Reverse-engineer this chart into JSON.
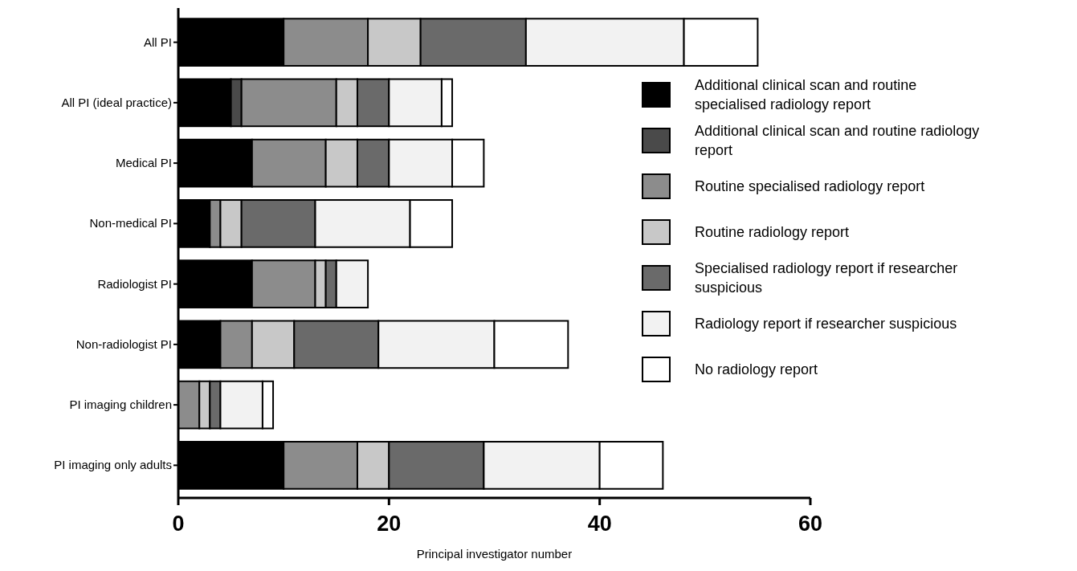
{
  "chart_data": {
    "type": "bar",
    "orientation": "horizontal",
    "stacked": true,
    "xlabel": "Principal investigator number",
    "categories": [
      "All PI",
      "All PI (ideal practice)",
      "Medical PI",
      "Non-medical PI",
      "Radiologist PI",
      "Non-radiologist PI",
      "PI imaging children",
      "PI imaging only adults"
    ],
    "series": [
      {
        "name": "Additional clinical scan and routine specialised radiology report",
        "color": "#000000",
        "values": [
          10,
          5,
          7,
          3,
          7,
          4,
          0,
          10
        ]
      },
      {
        "name": "Additional clinical scan and routine radiology report",
        "color": "#4a4a4a",
        "values": [
          0,
          1,
          0,
          0,
          0,
          0,
          0,
          0
        ]
      },
      {
        "name": "Routine specialised radiology report",
        "color": "#8c8c8c",
        "values": [
          8,
          9,
          7,
          1,
          6,
          3,
          2,
          7
        ]
      },
      {
        "name": "Routine radiology report",
        "color": "#c8c8c8",
        "values": [
          5,
          2,
          3,
          2,
          1,
          4,
          1,
          3
        ]
      },
      {
        "name": "Specialised radiology report if researcher suspicious",
        "color": "#6a6a6a",
        "values": [
          10,
          3,
          3,
          7,
          1,
          8,
          1,
          9
        ]
      },
      {
        "name": "Radiology report if researcher suspicious",
        "color": "#f2f2f2",
        "values": [
          15,
          5,
          6,
          9,
          3,
          11,
          4,
          11
        ]
      },
      {
        "name": "No radiology report",
        "color": "#ffffff",
        "values": [
          7,
          1,
          3,
          4,
          0,
          7,
          1,
          6
        ]
      }
    ],
    "xlim": [
      0,
      60
    ],
    "xticks": [
      0,
      20,
      40,
      60
    ],
    "legend": "right",
    "grid": false
  }
}
